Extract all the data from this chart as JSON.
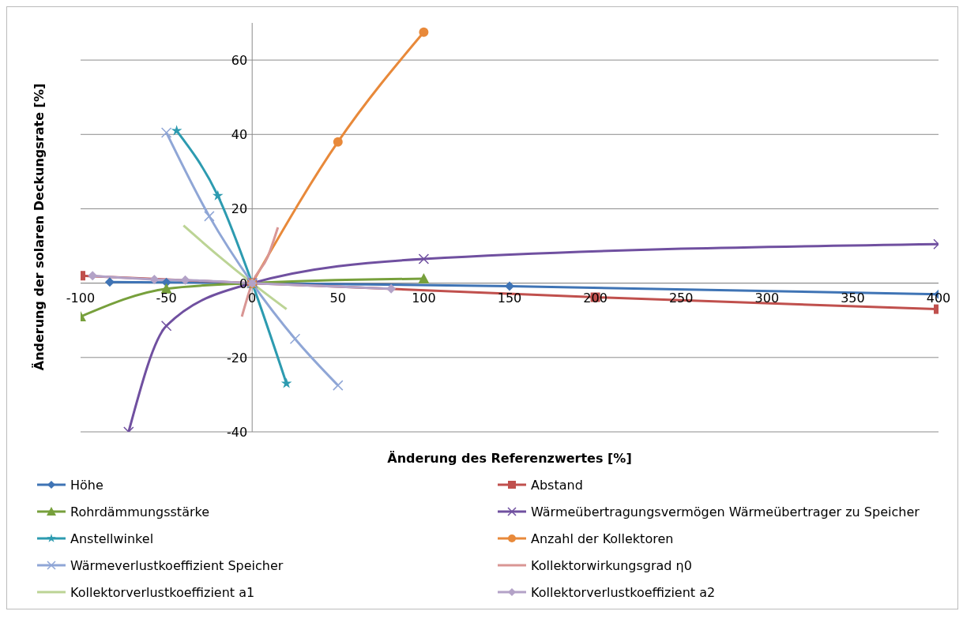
{
  "chart_data": {
    "type": "line",
    "xlabel": "Änderung des Referenzwertes [%]",
    "ylabel": "Änderung der solaren Deckungsrate [%]",
    "xlim": [
      -100,
      400
    ],
    "xticks": [
      -100,
      -50,
      0,
      50,
      100,
      150,
      200,
      250,
      300,
      350,
      400
    ],
    "ylim": [
      -40,
      70
    ],
    "yticks": [
      -40,
      -20,
      0,
      20,
      40,
      60
    ],
    "grid": "y",
    "legend": "bottom",
    "series": [
      {
        "name": "Höhe",
        "color": "#3f74b5",
        "marker": "diamond",
        "x": [
          -83,
          -50,
          0,
          150,
          400
        ],
        "values": [
          0.3,
          0.2,
          0,
          -0.8,
          -3
        ]
      },
      {
        "name": "Abstand",
        "color": "#c0504d",
        "marker": "square",
        "x": [
          -100,
          0,
          200,
          400
        ],
        "values": [
          2,
          0,
          -3.8,
          -7
        ]
      },
      {
        "name": "Rohrdämmungsstärke",
        "color": "#77a03c",
        "marker": "triangle",
        "x": [
          -100,
          -50,
          0,
          100
        ],
        "values": [
          -9,
          -1.5,
          0,
          1.2
        ]
      },
      {
        "name": "Wärmeübertragungsvermögen Wärmeübertrager zu Speicher",
        "color": "#7050a0",
        "marker": "cross",
        "x": [
          -72,
          -50,
          0,
          100,
          400
        ],
        "values": [
          -40,
          -11.5,
          0,
          6.5,
          10.5
        ]
      },
      {
        "name": "Anstellwinkel",
        "color": "#2d9bb0",
        "marker": "star",
        "x": [
          -44,
          -20,
          0,
          20
        ],
        "values": [
          41,
          23.5,
          0,
          -27
        ]
      },
      {
        "name": "Anzahl der Kollektoren",
        "color": "#e8893a",
        "marker": "circle",
        "x": [
          0,
          50,
          100
        ],
        "values": [
          0,
          38,
          67.5
        ]
      },
      {
        "name": "Wärmeverlustkoeffizient Speicher",
        "color": "#8fa6d6",
        "marker": "cross",
        "x": [
          -50,
          -25,
          0,
          25,
          50
        ],
        "values": [
          40.5,
          18,
          0,
          -15,
          -27.5
        ]
      },
      {
        "name": "Kollektorwirkungsgrad η0",
        "color": "#d99694",
        "marker": "none",
        "x": [
          -6,
          0,
          9,
          15
        ],
        "values": [
          -9,
          0,
          7,
          15
        ]
      },
      {
        "name": "Kollektorverlustkoeffizient a1",
        "color": "#bcd495",
        "marker": "none",
        "x": [
          -40,
          -20,
          0,
          20
        ],
        "values": [
          15.5,
          7.5,
          0,
          -7
        ]
      },
      {
        "name": "Kollektorverlustkoeffizient a2",
        "color": "#b3a2c7",
        "marker": "diamond",
        "x": [
          -93,
          -57,
          -39,
          0,
          81
        ],
        "values": [
          2,
          1,
          0.8,
          0,
          -1.5
        ]
      }
    ]
  }
}
